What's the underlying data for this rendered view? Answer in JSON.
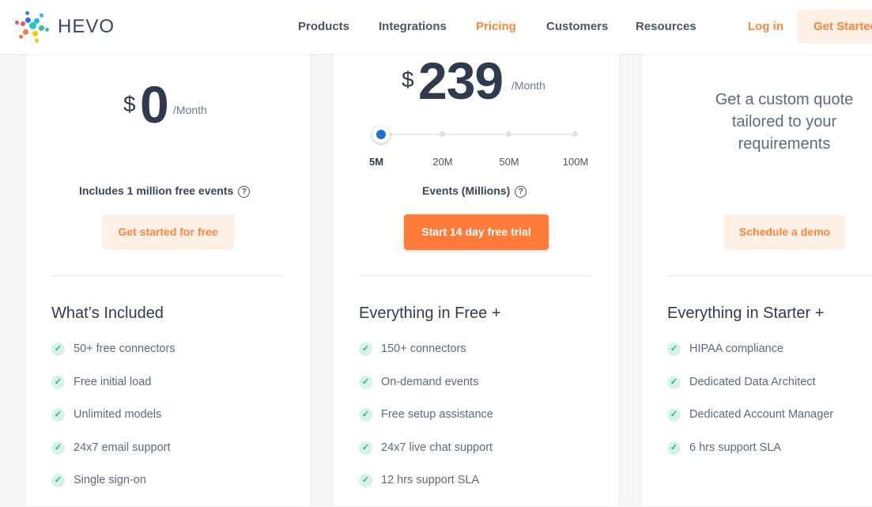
{
  "nav": {
    "brand": "HEVO",
    "items": [
      "Products",
      "Integrations",
      "Pricing",
      "Customers",
      "Resources"
    ],
    "active": "Pricing",
    "login": "Log in",
    "get_started": "Get Started"
  },
  "colors": {
    "accent": "#fe7b3c",
    "text": "#2f3a4f",
    "check": "#20b487"
  },
  "plans": [
    {
      "currency": "$",
      "price": "0",
      "period": "/Month",
      "note": "Includes 1 million free events",
      "button": "Get started for free",
      "heading": "What’s Included",
      "features": [
        "50+ free connectors",
        "Free initial load",
        "Unlimited models",
        "24x7 email support",
        "Single sign-on"
      ]
    },
    {
      "currency": "$",
      "price": "239",
      "period": "/Month",
      "slider": {
        "options": [
          "5M",
          "20M",
          "50M",
          "100M"
        ],
        "selected": "5M"
      },
      "note": "Events (Millions)",
      "button": "Start 14 day free trial",
      "heading": "Everything in Free +",
      "features": [
        "150+ connectors",
        "On-demand events",
        "Free setup assistance",
        "24x7 live chat support",
        "12 hrs support SLA"
      ]
    },
    {
      "quote": "Get a custom quote tailored to your requirements",
      "button": "Schedule a demo",
      "heading": "Everything in Starter +",
      "features": [
        "HIPAA compliance",
        "Dedicated Data Architect",
        "Dedicated Account Manager",
        "6 hrs support SLA"
      ]
    }
  ]
}
